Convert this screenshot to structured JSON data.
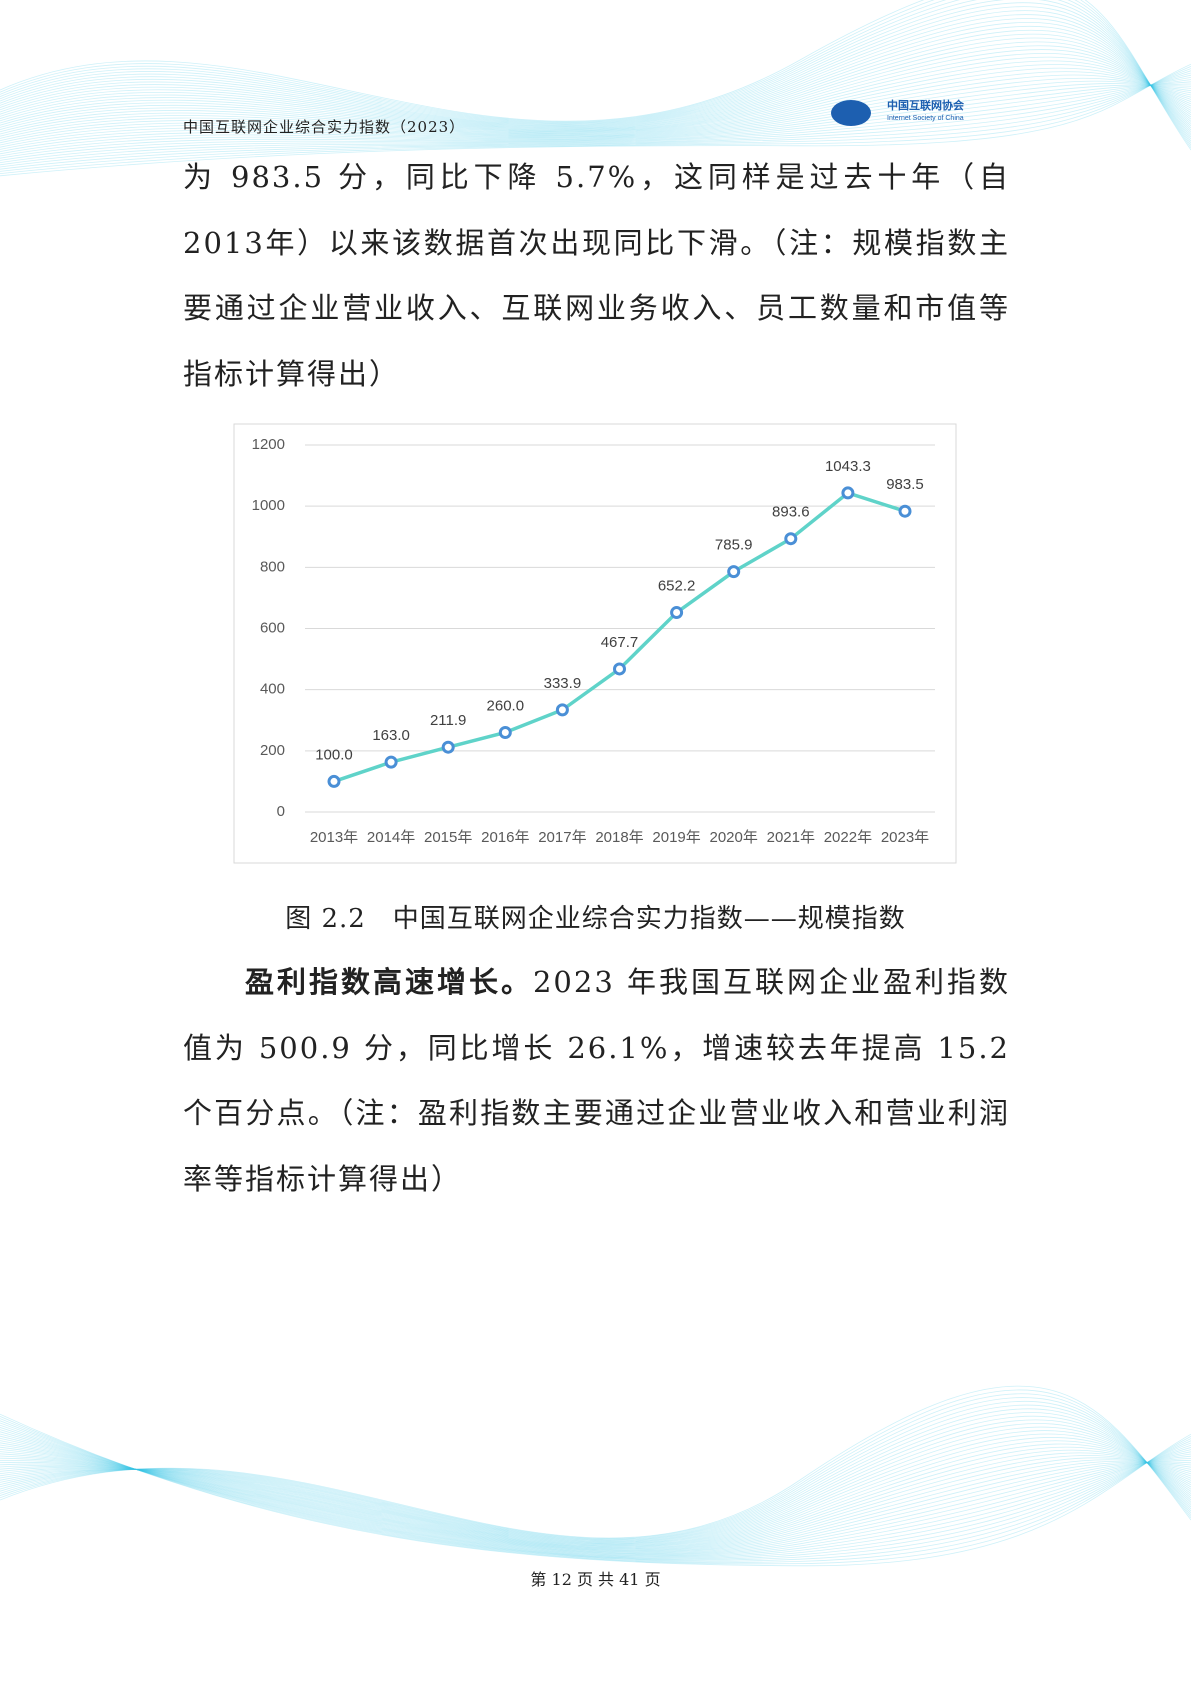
{
  "header": {
    "title": "中国互联网企业综合实力指数（2023）",
    "logo_cn": "中国互联网协会",
    "logo_en": "Internet Society of China"
  },
  "paragraph_1": "为 983.5 分，同比下降 5.7%，这同样是过去十年（自 2013年）以来该数据首次出现同比下滑。（注：规模指数主要通过企业营业收入、互联网业务收入、员工数量和市值等指标计算得出）",
  "chart_data": {
    "type": "line",
    "categories": [
      "2013年",
      "2014年",
      "2015年",
      "2016年",
      "2017年",
      "2018年",
      "2019年",
      "2020年",
      "2021年",
      "2022年",
      "2023年"
    ],
    "values": [
      100,
      163,
      211.9,
      260,
      333.9,
      467.7,
      652.2,
      785.9,
      893.6,
      1043.3,
      983.5
    ],
    "value_labels": [
      "100.0",
      "163.0",
      "211.9",
      "260.0",
      "333.9",
      "467.7",
      "652.2",
      "785.9",
      "893.6",
      "1043.3",
      "983.5"
    ],
    "color": "#5fd3c9",
    "marker_color": "#4a8fd6",
    "ylim": [
      0,
      1200
    ],
    "yticks": [
      0,
      200,
      400,
      600,
      800,
      1000,
      1200
    ],
    "grid": true
  },
  "caption": "图 2.2　中国互联网企业综合实力指数——规模指数",
  "paragraph_2": {
    "lead": "盈利指数高速增长。",
    "text": "2023 年我国互联网企业盈利指数值为 500.9 分，同比增长 26.1%，增速较去年提高 15.2 个百分点。（注：盈利指数主要通过企业营业收入和营业利润率等指标计算得出）"
  },
  "footer": "第 12 页 共 41 页"
}
